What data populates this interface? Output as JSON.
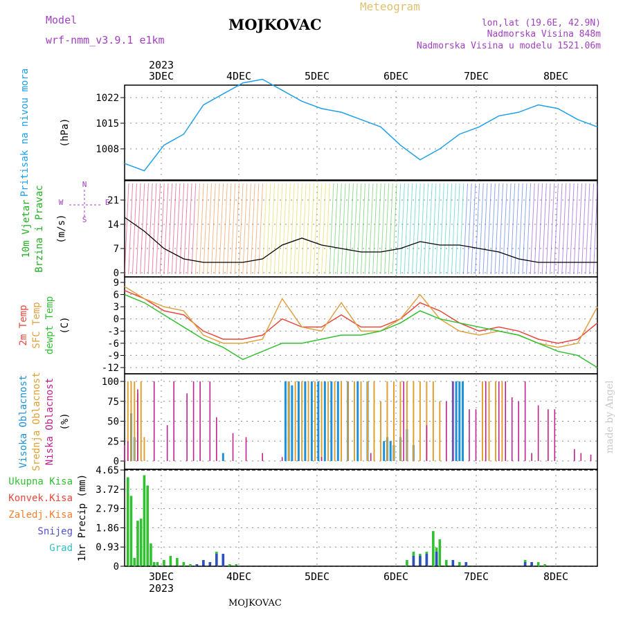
{
  "header": {
    "model_label": "Model",
    "model_name": "wrf-nmm_v3.9.1 e1km",
    "station": "MOJKOVAC",
    "title": "Meteogram",
    "lonlat": "lon,lat (19.6E, 42.9N)",
    "altitude": "Nadmorska Visina 848m",
    "model_altitude": "Nadmorska Visina u modelu 1521.06m",
    "footer": "MOJKOVAC",
    "credit": "made by Angel"
  },
  "colors": {
    "pressure": "#1ea0e8",
    "t2m": "#e8473c",
    "tsfc": "#e0a040",
    "dewpt": "#30c030",
    "cloud_high": "#1e90d8",
    "cloud_mid": "#e0a030",
    "cloud_low": "#c02090",
    "precip_total": "#30c030",
    "precip_snow": "#3050c0",
    "model_label": "#a040c0",
    "title": "#e0c070",
    "grid": "#888888"
  },
  "chart_data": {
    "type": "line",
    "x_axis": {
      "year": "2023",
      "days": [
        "3DEC",
        "4DEC",
        "5DEC",
        "6DEC",
        "7DEC",
        "8DEC"
      ],
      "range_hours": [
        0,
        144
      ]
    },
    "panels": [
      {
        "id": "pressure",
        "ylabel": [
          "Pritisak na nivou mora",
          "(hPa)"
        ],
        "ticks": [
          "1008",
          "1015",
          "1022"
        ],
        "ylim": [
          1000,
          1028
        ],
        "series": [
          {
            "name": "Pritisak na nivou mora",
            "x": [
              0,
              6,
              12,
              18,
              24,
              30,
              36,
              42,
              48,
              54,
              60,
              66,
              72,
              78,
              84,
              90,
              96,
              102,
              108,
              114,
              120,
              126,
              132,
              138,
              144
            ],
            "values": [
              1004,
              1002,
              1009,
              1012,
              1020,
              1023,
              1026,
              1027,
              1024,
              1021,
              1019,
              1018,
              1016,
              1014,
              1009,
              1005,
              1008,
              1012,
              1014,
              1017,
              1018,
              1020,
              1019,
              1016,
              1014
            ]
          }
        ]
      },
      {
        "id": "wind",
        "ylabel": [
          "10m Vjetar",
          "Brzina i Pravac",
          "(m/s)"
        ],
        "ticks": [
          "0",
          "7",
          "14",
          "21"
        ],
        "ylim": [
          0,
          27
        ],
        "compass": {
          "n": "N",
          "s": "S",
          "e": "E",
          "w": "W"
        },
        "series": [
          {
            "name": "Brzina",
            "x": [
              0,
              6,
              12,
              18,
              24,
              30,
              36,
              42,
              48,
              54,
              60,
              66,
              72,
              78,
              84,
              90,
              96,
              102,
              108,
              114,
              120,
              126,
              132,
              138,
              144
            ],
            "values": [
              16,
              12,
              7,
              4,
              3,
              3,
              3,
              4,
              8,
              10,
              8,
              7,
              6,
              6,
              7,
              9,
              8,
              8,
              7,
              6,
              4,
              3,
              3,
              3,
              3
            ]
          }
        ]
      },
      {
        "id": "temperature",
        "ylabel": [
          "2m Temp",
          "SFC Temp",
          "dewpt Temp",
          "(C)"
        ],
        "ticks": [
          "-12",
          "-9",
          "-6",
          "-3",
          "0",
          "3",
          "6",
          "9"
        ],
        "ylim": [
          -13,
          10
        ],
        "series": [
          {
            "name": "2m Temp",
            "x": [
              0,
              6,
              12,
              18,
              24,
              30,
              36,
              42,
              48,
              54,
              60,
              66,
              72,
              78,
              84,
              90,
              96,
              102,
              108,
              114,
              120,
              126,
              132,
              138,
              144
            ],
            "values": [
              7,
              5,
              2,
              1,
              -3,
              -5,
              -5,
              -4,
              0,
              -2,
              -2,
              1,
              -2,
              -2,
              0,
              4,
              2,
              -1,
              -3,
              -2,
              -3,
              -5,
              -6,
              -5,
              -1
            ]
          },
          {
            "name": "SFC Temp",
            "x": [
              0,
              6,
              12,
              18,
              24,
              30,
              36,
              42,
              48,
              54,
              60,
              66,
              72,
              78,
              84,
              90,
              96,
              102,
              108,
              114,
              120,
              126,
              132,
              138,
              144
            ],
            "values": [
              8,
              5,
              3,
              2,
              -4,
              -6,
              -6,
              -5,
              5,
              -2,
              -3,
              4,
              -3,
              -3,
              0,
              6,
              0,
              -3,
              -4,
              -3,
              -4,
              -6,
              -7,
              -6,
              3
            ]
          },
          {
            "name": "dewpt Temp",
            "x": [
              0,
              6,
              12,
              18,
              24,
              30,
              36,
              42,
              48,
              54,
              60,
              66,
              72,
              78,
              84,
              90,
              96,
              102,
              108,
              114,
              120,
              126,
              132,
              138,
              144
            ],
            "values": [
              6,
              4,
              1,
              -2,
              -5,
              -7,
              -10,
              -8,
              -6,
              -6,
              -5,
              -4,
              -4,
              -3,
              -1,
              2,
              0,
              -1,
              -2,
              -3,
              -4,
              -6,
              -8,
              -9,
              -12
            ]
          }
        ]
      },
      {
        "id": "clouds",
        "ylabel": [
          "Visoka Oblacnost",
          "Srednja Oblacnost",
          "Niska Oblacnost",
          "(%)"
        ],
        "ticks": [
          "0",
          "25",
          "50",
          "75",
          "100"
        ],
        "ylim": [
          0,
          100
        ],
        "series": [
          {
            "name": "Visoka Oblacnost",
            "x": [
              2,
              3,
              30,
              49,
              50,
              51,
              53,
              55,
              57,
              59,
              61,
              63,
              65,
              68,
              71,
              74,
              79,
              80,
              81,
              82,
              84,
              86,
              88,
              100,
              101,
              102,
              103
            ],
            "values": [
              60,
              30,
              10,
              100,
              100,
              95,
              100,
              100,
              100,
              100,
              100,
              100,
              100,
              100,
              100,
              100,
              25,
              30,
              25,
              20,
              30,
              40,
              20,
              100,
              100,
              100,
              100
            ]
          },
          {
            "name": "Srednja Oblacnost",
            "x": [
              1,
              2,
              3,
              4,
              5,
              6,
              50,
              52,
              54,
              56,
              58,
              60,
              62,
              64,
              66,
              68,
              70,
              72,
              74,
              76,
              78,
              80,
              82,
              84,
              86,
              88,
              90,
              92,
              94,
              96,
              109,
              111,
              113,
              115
            ],
            "values": [
              100,
              100,
              100,
              85,
              100,
              30,
              100,
              100,
              100,
              100,
              100,
              100,
              100,
              100,
              100,
              100,
              100,
              100,
              100,
              100,
              75,
              100,
              100,
              100,
              100,
              100,
              100,
              100,
              100,
              75,
              100,
              100,
              100,
              100
            ]
          },
          {
            "name": "Niska Oblacnost",
            "x": [
              0,
              1,
              4,
              9,
              13,
              15,
              19,
              21,
              23,
              26,
              28,
              33,
              37,
              42,
              48,
              60,
              75,
              85,
              92,
              98,
              100,
              105,
              107,
              110,
              114,
              116,
              118,
              120,
              122,
              124,
              126,
              129,
              131,
              137,
              139,
              142
            ],
            "values": [
              20,
              25,
              90,
              100,
              45,
              100,
              85,
              100,
              100,
              100,
              55,
              35,
              30,
              10,
              5,
              5,
              10,
              100,
              45,
              75,
              100,
              65,
              65,
              100,
              100,
              100,
              80,
              75,
              100,
              10,
              70,
              65,
              65,
              15,
              10,
              8
            ]
          }
        ]
      },
      {
        "id": "precip",
        "ylabel": [
          "Ukupna Kisa",
          "Konvek.Kisa",
          "Zaledj.Kisa",
          "Snijeg",
          "Grad",
          "1hr Precip (mm)"
        ],
        "ticks": [
          "0",
          "0.93",
          "1.86",
          "2.79",
          "3.72",
          "4.65"
        ],
        "ylim": [
          0,
          4.65
        ],
        "series": [
          {
            "name": "Ukupna Kisa",
            "x": [
              1,
              2,
              3,
              4,
              5,
              6,
              7,
              8,
              9,
              10,
              12,
              14,
              16,
              18,
              20,
              22,
              24,
              26,
              28,
              30,
              32,
              34,
              86,
              88,
              90,
              92,
              94,
              95,
              96,
              98,
              100,
              102,
              104,
              122,
              124,
              126,
              128
            ],
            "values": [
              4.3,
              3.4,
              0.4,
              2.2,
              2.3,
              4.4,
              3.9,
              1.1,
              0.2,
              0.2,
              0.3,
              0.5,
              0.4,
              0.2,
              0.1,
              0.1,
              0.3,
              0.2,
              0.7,
              0.6,
              0.1,
              0.1,
              0.3,
              0.7,
              0.6,
              0.7,
              1.7,
              0.9,
              1.3,
              0.3,
              0.3,
              0.2,
              0.2,
              0.3,
              0.2,
              0.2,
              0.1
            ]
          },
          {
            "name": "Snijeg",
            "x": [
              22,
              24,
              26,
              28,
              30,
              88,
              90,
              92,
              95,
              100,
              104,
              122,
              124
            ],
            "values": [
              0.1,
              0.3,
              0.2,
              0.6,
              0.6,
              0.5,
              0.5,
              0.6,
              0.7,
              0.3,
              0.2,
              0.2,
              0.2
            ]
          }
        ]
      }
    ]
  }
}
